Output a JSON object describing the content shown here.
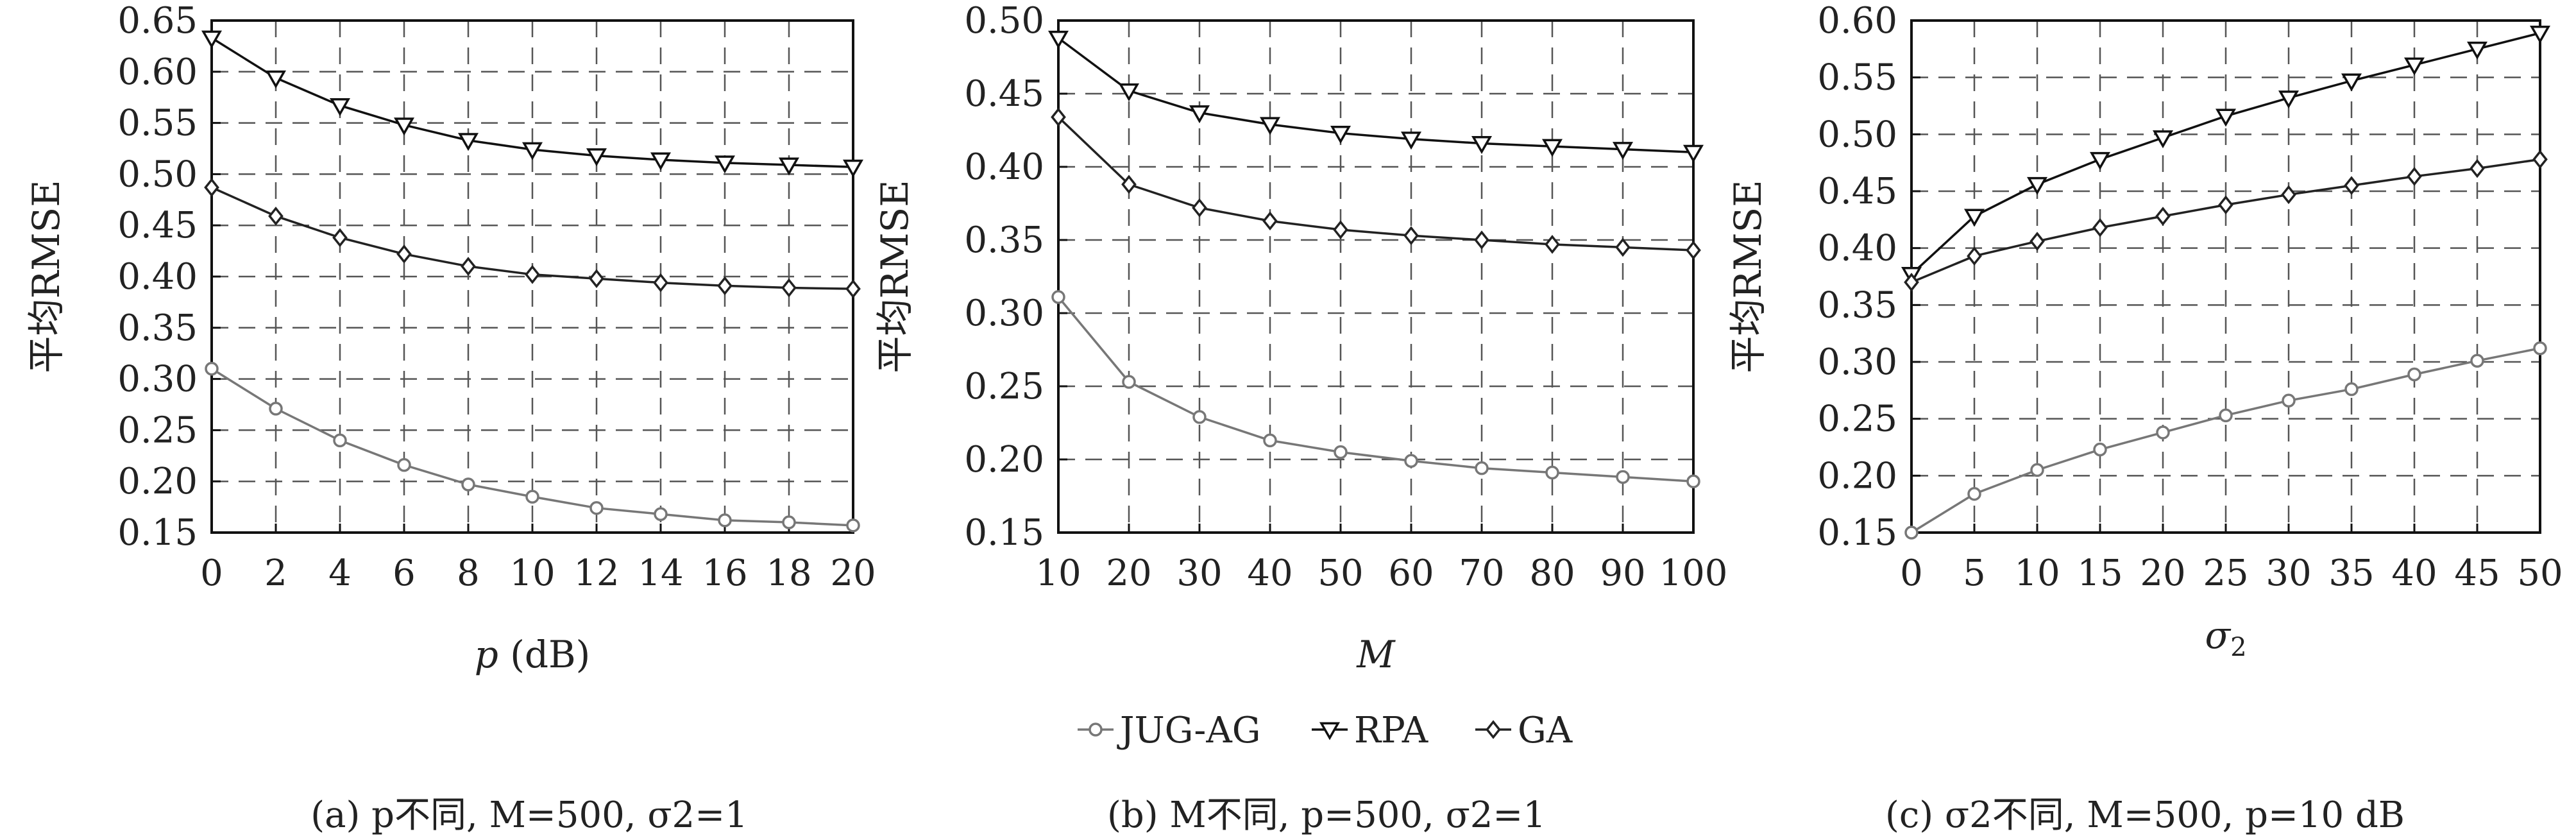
{
  "chart_data": [
    {
      "type": "line",
      "caption": "(a) p不同, M=500, σ2=1",
      "xlabel": "p (dB)",
      "ylabel": "平均RMSE",
      "x": [
        0,
        2,
        4,
        6,
        8,
        10,
        12,
        14,
        16,
        18,
        20
      ],
      "xlim": [
        0,
        20
      ],
      "ylim": [
        0.15,
        0.65
      ],
      "xticks": [
        "0",
        "2",
        "4",
        "6",
        "8",
        "10",
        "12",
        "14",
        "16",
        "18",
        "20"
      ],
      "yticks": [
        "0.15",
        "0.20",
        "0.25",
        "0.30",
        "0.35",
        "0.40",
        "0.45",
        "0.50",
        "0.55",
        "0.60",
        "0.65"
      ],
      "grid": "dashed",
      "series": [
        {
          "name": "JUG-AG",
          "marker": "circle",
          "color": "#777777",
          "values": [
            0.31,
            0.271,
            0.24,
            0.216,
            0.197,
            0.185,
            0.174,
            0.168,
            0.162,
            0.16,
            0.157
          ]
        },
        {
          "name": "RPA",
          "marker": "triangle-down",
          "color": "#111111",
          "values": [
            0.633,
            0.594,
            0.567,
            0.548,
            0.533,
            0.524,
            0.518,
            0.514,
            0.511,
            0.509,
            0.507
          ]
        },
        {
          "name": "GA",
          "marker": "diamond",
          "color": "#222222",
          "values": [
            0.487,
            0.459,
            0.438,
            0.422,
            0.41,
            0.402,
            0.398,
            0.394,
            0.391,
            0.389,
            0.388
          ]
        }
      ]
    },
    {
      "type": "line",
      "caption": "(b) M不同, p=500, σ2=1",
      "xlabel": "M",
      "ylabel": "平均RMSE",
      "x": [
        10,
        20,
        30,
        40,
        50,
        60,
        70,
        80,
        90,
        100
      ],
      "xlim": [
        10,
        100
      ],
      "ylim": [
        0.15,
        0.5
      ],
      "xticks": [
        "10",
        "20",
        "30",
        "40",
        "50",
        "60",
        "70",
        "80",
        "90",
        "100"
      ],
      "yticks": [
        "0.15",
        "0.20",
        "0.25",
        "0.30",
        "0.35",
        "0.40",
        "0.45",
        "0.50"
      ],
      "grid": "dashed",
      "series": [
        {
          "name": "JUG-AG",
          "marker": "circle",
          "color": "#777777",
          "values": [
            0.311,
            0.253,
            0.229,
            0.213,
            0.205,
            0.199,
            0.194,
            0.191,
            0.188,
            0.185
          ]
        },
        {
          "name": "RPA",
          "marker": "triangle-down",
          "color": "#111111",
          "values": [
            0.488,
            0.452,
            0.437,
            0.429,
            0.423,
            0.419,
            0.416,
            0.414,
            0.412,
            0.41
          ]
        },
        {
          "name": "GA",
          "marker": "diamond",
          "color": "#222222",
          "values": [
            0.434,
            0.388,
            0.372,
            0.363,
            0.357,
            0.353,
            0.35,
            0.347,
            0.345,
            0.343
          ]
        }
      ]
    },
    {
      "type": "line",
      "caption": "(c) σ2不同, M=500, p=10 dB",
      "xlabel": "σ2",
      "ylabel": "平均RMSE",
      "x": [
        0,
        5,
        10,
        15,
        20,
        25,
        30,
        35,
        40,
        45,
        50
      ],
      "xlim": [
        0,
        50
      ],
      "ylim": [
        0.15,
        0.6
      ],
      "xticks": [
        "0",
        "5",
        "10",
        "15",
        "20",
        "25",
        "30",
        "35",
        "40",
        "45",
        "50"
      ],
      "yticks": [
        "0.15",
        "0.20",
        "0.25",
        "0.30",
        "0.35",
        "0.40",
        "0.45",
        "0.50",
        "0.55",
        "0.60"
      ],
      "grid": "dashed",
      "series": [
        {
          "name": "JUG-AG",
          "marker": "circle",
          "color": "#777777",
          "values": [
            0.15,
            0.184,
            0.205,
            0.223,
            0.238,
            0.253,
            0.266,
            0.276,
            0.289,
            0.301,
            0.312
          ]
        },
        {
          "name": "RPA",
          "marker": "triangle-down",
          "color": "#111111",
          "values": [
            0.377,
            0.428,
            0.456,
            0.478,
            0.497,
            0.516,
            0.532,
            0.547,
            0.561,
            0.575,
            0.589
          ]
        },
        {
          "name": "GA",
          "marker": "diamond",
          "color": "#222222",
          "values": [
            0.37,
            0.393,
            0.406,
            0.418,
            0.428,
            0.438,
            0.447,
            0.455,
            0.463,
            0.47,
            0.478
          ]
        }
      ]
    }
  ],
  "legend": {
    "entries": [
      "JUG-AG",
      "RPA",
      "GA"
    ],
    "placement": "bottom-center"
  }
}
